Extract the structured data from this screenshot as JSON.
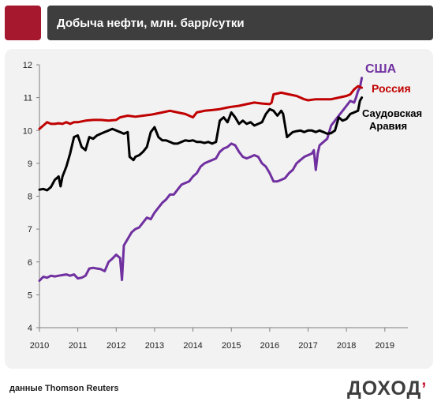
{
  "header": {
    "title": "Добыча нефти, млн. барр/сутки"
  },
  "source_note": "данные Thomson Reuters",
  "logo": {
    "text": "ДОХОД",
    "accent": "’"
  },
  "colors": {
    "brand": "#a5182e",
    "usa": "#7030a0",
    "russia": "#c00000",
    "saudi": "#000000"
  },
  "chart_data": {
    "type": "line",
    "title": "Добыча нефти, млн. барр/сутки",
    "xlabel": "",
    "ylabel": "",
    "xlim": [
      2010,
      2019.6
    ],
    "ylim": [
      4,
      12
    ],
    "grid": false,
    "x_ticks": [
      "2010",
      "2011",
      "2012",
      "2013",
      "2014",
      "2015",
      "2016",
      "2017",
      "2018",
      "2019"
    ],
    "y_ticks": [
      "4",
      "5",
      "6",
      "7",
      "8",
      "9",
      "10",
      "11",
      "12"
    ],
    "series": [
      {
        "name": "США",
        "color": "#7030a0",
        "points": [
          [
            2010.0,
            5.43
          ],
          [
            2010.1,
            5.55
          ],
          [
            2010.2,
            5.52
          ],
          [
            2010.3,
            5.58
          ],
          [
            2010.4,
            5.56
          ],
          [
            2010.5,
            5.58
          ],
          [
            2010.6,
            5.6
          ],
          [
            2010.7,
            5.62
          ],
          [
            2010.8,
            5.58
          ],
          [
            2010.9,
            5.62
          ],
          [
            2011.0,
            5.5
          ],
          [
            2011.1,
            5.52
          ],
          [
            2011.2,
            5.58
          ],
          [
            2011.3,
            5.8
          ],
          [
            2011.4,
            5.82
          ],
          [
            2011.5,
            5.8
          ],
          [
            2011.6,
            5.78
          ],
          [
            2011.7,
            5.72
          ],
          [
            2011.8,
            6.0
          ],
          [
            2011.9,
            6.1
          ],
          [
            2012.0,
            6.22
          ],
          [
            2012.1,
            6.12
          ],
          [
            2012.15,
            5.45
          ],
          [
            2012.2,
            6.5
          ],
          [
            2012.3,
            6.7
          ],
          [
            2012.4,
            6.9
          ],
          [
            2012.5,
            7.0
          ],
          [
            2012.6,
            7.05
          ],
          [
            2012.7,
            7.2
          ],
          [
            2012.8,
            7.35
          ],
          [
            2012.9,
            7.3
          ],
          [
            2013.0,
            7.5
          ],
          [
            2013.1,
            7.65
          ],
          [
            2013.2,
            7.8
          ],
          [
            2013.3,
            7.9
          ],
          [
            2013.4,
            8.05
          ],
          [
            2013.5,
            8.05
          ],
          [
            2013.6,
            8.2
          ],
          [
            2013.7,
            8.35
          ],
          [
            2013.8,
            8.4
          ],
          [
            2013.9,
            8.45
          ],
          [
            2014.0,
            8.6
          ],
          [
            2014.1,
            8.7
          ],
          [
            2014.2,
            8.9
          ],
          [
            2014.3,
            9.0
          ],
          [
            2014.4,
            9.05
          ],
          [
            2014.5,
            9.1
          ],
          [
            2014.6,
            9.15
          ],
          [
            2014.7,
            9.35
          ],
          [
            2014.8,
            9.45
          ],
          [
            2014.9,
            9.5
          ],
          [
            2015.0,
            9.6
          ],
          [
            2015.1,
            9.55
          ],
          [
            2015.2,
            9.35
          ],
          [
            2015.3,
            9.2
          ],
          [
            2015.4,
            9.15
          ],
          [
            2015.5,
            9.2
          ],
          [
            2015.6,
            9.25
          ],
          [
            2015.7,
            9.2
          ],
          [
            2015.8,
            9.0
          ],
          [
            2015.9,
            8.9
          ],
          [
            2016.0,
            8.7
          ],
          [
            2016.1,
            8.45
          ],
          [
            2016.2,
            8.45
          ],
          [
            2016.3,
            8.5
          ],
          [
            2016.4,
            8.55
          ],
          [
            2016.5,
            8.7
          ],
          [
            2016.6,
            8.8
          ],
          [
            2016.7,
            9.0
          ],
          [
            2016.8,
            9.1
          ],
          [
            2016.9,
            9.2
          ],
          [
            2017.0,
            9.25
          ],
          [
            2017.1,
            9.3
          ],
          [
            2017.15,
            9.4
          ],
          [
            2017.2,
            8.8
          ],
          [
            2017.25,
            9.3
          ],
          [
            2017.3,
            9.55
          ],
          [
            2017.4,
            9.65
          ],
          [
            2017.5,
            9.75
          ],
          [
            2017.6,
            10.15
          ],
          [
            2017.7,
            10.3
          ],
          [
            2017.8,
            10.45
          ],
          [
            2017.9,
            10.6
          ],
          [
            2018.0,
            10.75
          ],
          [
            2018.1,
            10.9
          ],
          [
            2018.2,
            10.85
          ],
          [
            2018.25,
            11.0
          ],
          [
            2018.3,
            11.2
          ],
          [
            2018.35,
            11.3
          ],
          [
            2018.4,
            11.6
          ]
        ]
      },
      {
        "name": "Россия",
        "color": "#c00000",
        "points": [
          [
            2010.0,
            10.05
          ],
          [
            2010.1,
            10.15
          ],
          [
            2010.2,
            10.25
          ],
          [
            2010.3,
            10.2
          ],
          [
            2010.4,
            10.2
          ],
          [
            2010.5,
            10.22
          ],
          [
            2010.6,
            10.2
          ],
          [
            2010.7,
            10.25
          ],
          [
            2010.8,
            10.2
          ],
          [
            2010.9,
            10.25
          ],
          [
            2011.0,
            10.25
          ],
          [
            2011.2,
            10.3
          ],
          [
            2011.4,
            10.32
          ],
          [
            2011.6,
            10.32
          ],
          [
            2011.8,
            10.3
          ],
          [
            2012.0,
            10.32
          ],
          [
            2012.1,
            10.4
          ],
          [
            2012.3,
            10.45
          ],
          [
            2012.5,
            10.42
          ],
          [
            2012.7,
            10.45
          ],
          [
            2012.9,
            10.48
          ],
          [
            2013.0,
            10.5
          ],
          [
            2013.2,
            10.55
          ],
          [
            2013.4,
            10.6
          ],
          [
            2013.6,
            10.55
          ],
          [
            2013.8,
            10.5
          ],
          [
            2013.9,
            10.45
          ],
          [
            2014.0,
            10.4
          ],
          [
            2014.1,
            10.55
          ],
          [
            2014.3,
            10.6
          ],
          [
            2014.5,
            10.62
          ],
          [
            2014.7,
            10.65
          ],
          [
            2014.9,
            10.7
          ],
          [
            2015.0,
            10.72
          ],
          [
            2015.2,
            10.75
          ],
          [
            2015.4,
            10.8
          ],
          [
            2015.6,
            10.85
          ],
          [
            2015.8,
            10.82
          ],
          [
            2016.0,
            10.8
          ],
          [
            2016.05,
            10.85
          ],
          [
            2016.1,
            11.1
          ],
          [
            2016.3,
            11.15
          ],
          [
            2016.5,
            11.1
          ],
          [
            2016.7,
            11.05
          ],
          [
            2016.9,
            10.95
          ],
          [
            2017.0,
            10.92
          ],
          [
            2017.2,
            10.95
          ],
          [
            2017.4,
            10.95
          ],
          [
            2017.6,
            10.95
          ],
          [
            2017.8,
            11.0
          ],
          [
            2018.0,
            11.05
          ],
          [
            2018.1,
            11.1
          ],
          [
            2018.2,
            11.25
          ],
          [
            2018.3,
            11.35
          ],
          [
            2018.4,
            11.3
          ]
        ]
      },
      {
        "name": "Саудовская Аравия",
        "color": "#000000",
        "points": [
          [
            2010.0,
            8.2
          ],
          [
            2010.1,
            8.22
          ],
          [
            2010.2,
            8.18
          ],
          [
            2010.3,
            8.28
          ],
          [
            2010.4,
            8.5
          ],
          [
            2010.5,
            8.6
          ],
          [
            2010.55,
            8.3
          ],
          [
            2010.6,
            8.6
          ],
          [
            2010.7,
            8.9
          ],
          [
            2010.8,
            9.3
          ],
          [
            2010.9,
            9.8
          ],
          [
            2011.0,
            9.85
          ],
          [
            2011.1,
            9.5
          ],
          [
            2011.2,
            9.4
          ],
          [
            2011.3,
            9.8
          ],
          [
            2011.4,
            9.75
          ],
          [
            2011.5,
            9.85
          ],
          [
            2011.6,
            9.9
          ],
          [
            2011.7,
            9.95
          ],
          [
            2011.8,
            10.0
          ],
          [
            2011.9,
            10.05
          ],
          [
            2012.0,
            10.0
          ],
          [
            2012.1,
            9.95
          ],
          [
            2012.2,
            9.9
          ],
          [
            2012.3,
            9.95
          ],
          [
            2012.35,
            9.2
          ],
          [
            2012.45,
            9.1
          ],
          [
            2012.5,
            9.2
          ],
          [
            2012.6,
            9.25
          ],
          [
            2012.7,
            9.35
          ],
          [
            2012.8,
            9.5
          ],
          [
            2012.9,
            9.95
          ],
          [
            2013.0,
            10.1
          ],
          [
            2013.1,
            9.8
          ],
          [
            2013.2,
            9.7
          ],
          [
            2013.3,
            9.7
          ],
          [
            2013.4,
            9.65
          ],
          [
            2013.5,
            9.6
          ],
          [
            2013.6,
            9.6
          ],
          [
            2013.7,
            9.65
          ],
          [
            2013.8,
            9.7
          ],
          [
            2013.9,
            9.68
          ],
          [
            2014.0,
            9.7
          ],
          [
            2014.1,
            9.65
          ],
          [
            2014.2,
            9.65
          ],
          [
            2014.3,
            9.62
          ],
          [
            2014.4,
            9.65
          ],
          [
            2014.5,
            9.6
          ],
          [
            2014.6,
            9.65
          ],
          [
            2014.7,
            10.3
          ],
          [
            2014.8,
            10.4
          ],
          [
            2014.9,
            10.25
          ],
          [
            2015.0,
            10.55
          ],
          [
            2015.1,
            10.4
          ],
          [
            2015.2,
            10.2
          ],
          [
            2015.3,
            10.3
          ],
          [
            2015.4,
            10.2
          ],
          [
            2015.5,
            10.25
          ],
          [
            2015.6,
            10.15
          ],
          [
            2015.7,
            10.2
          ],
          [
            2015.8,
            10.25
          ],
          [
            2015.9,
            10.5
          ],
          [
            2016.0,
            10.65
          ],
          [
            2016.1,
            10.6
          ],
          [
            2016.2,
            10.45
          ],
          [
            2016.3,
            10.6
          ],
          [
            2016.35,
            10.5
          ],
          [
            2016.45,
            9.8
          ],
          [
            2016.6,
            9.95
          ],
          [
            2016.7,
            9.98
          ],
          [
            2016.8,
            10.0
          ],
          [
            2016.9,
            9.95
          ],
          [
            2017.0,
            10.0
          ],
          [
            2017.1,
            10.0
          ],
          [
            2017.2,
            9.95
          ],
          [
            2017.3,
            10.0
          ],
          [
            2017.4,
            9.95
          ],
          [
            2017.5,
            9.9
          ],
          [
            2017.6,
            9.92
          ],
          [
            2017.7,
            10.0
          ],
          [
            2017.8,
            10.4
          ],
          [
            2017.9,
            10.3
          ],
          [
            2018.0,
            10.35
          ],
          [
            2018.1,
            10.5
          ],
          [
            2018.2,
            10.55
          ],
          [
            2018.3,
            10.6
          ],
          [
            2018.35,
            10.9
          ],
          [
            2018.4,
            11.0
          ]
        ]
      }
    ]
  }
}
